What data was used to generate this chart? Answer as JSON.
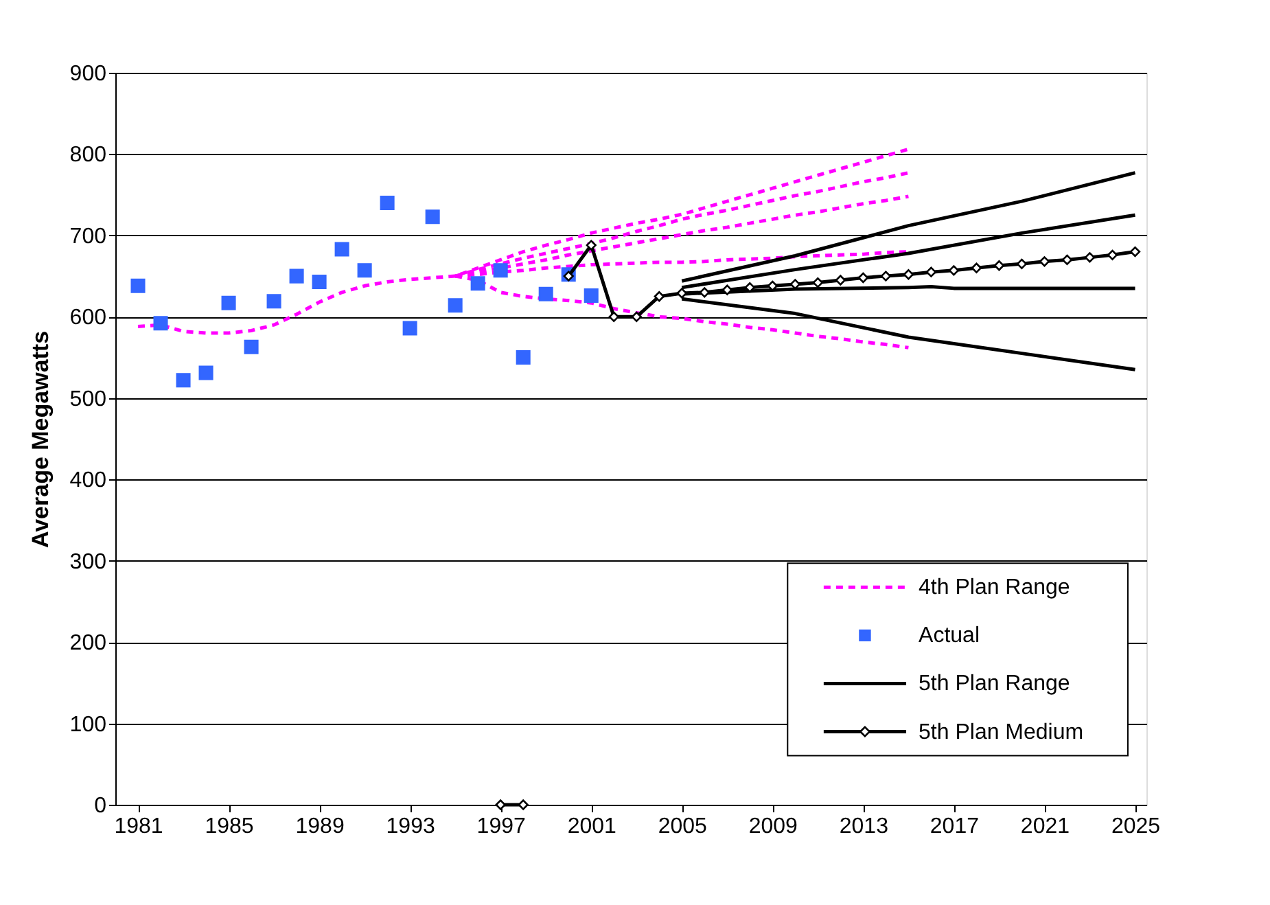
{
  "chart_data": {
    "type": "line",
    "ylabel": "Average Megawatts",
    "xlim": [
      1980,
      2025.5
    ],
    "xticks": [
      1981,
      1985,
      1989,
      1993,
      1997,
      2001,
      2005,
      2009,
      2013,
      2017,
      2021,
      2025
    ],
    "ylim": [
      0,
      900
    ],
    "yticks": [
      0,
      100,
      200,
      300,
      400,
      500,
      600,
      700,
      800,
      900
    ],
    "grid": "y",
    "legend": "bottom right",
    "series": [
      {
        "name": "4th Plan Range",
        "color": "#ff00ff",
        "line_style": "dashed",
        "marker": "none",
        "x": [
          1981,
          1982,
          1983,
          1984,
          1985,
          1986,
          1987,
          1988,
          1989,
          1990,
          1991,
          1992,
          1993,
          1994,
          1995,
          1996,
          1997,
          1998,
          1999,
          2000,
          2001,
          2002,
          2003,
          2004,
          2005,
          2006,
          2007,
          2008,
          2009,
          2010,
          2011,
          2012,
          2013,
          2014,
          2015
        ],
        "values": [
          588,
          590,
          582,
          580,
          580,
          583,
          590,
          603,
          618,
          630,
          638,
          643,
          646,
          648,
          650,
          660,
          670,
          680,
          688,
          695,
          703,
          709,
          715,
          720,
          726,
          734,
          742,
          750,
          758,
          766,
          774,
          782,
          790,
          798,
          806
        ]
      },
      {
        "color": "#ff00ff",
        "line_style": "dashed",
        "marker": "none",
        "x": [
          1995,
          1996,
          1997,
          1998,
          1999,
          2000,
          2001,
          2002,
          2003,
          2004,
          2005,
          2006,
          2007,
          2008,
          2009,
          2010,
          2011,
          2012,
          2013,
          2014,
          2015
        ],
        "values": [
          650,
          658,
          665,
          672,
          678,
          684,
          690,
          697,
          705,
          712,
          720,
          726,
          731,
          737,
          743,
          749,
          754,
          760,
          766,
          771,
          777
        ]
      },
      {
        "color": "#ff00ff",
        "line_style": "dashed",
        "marker": "none",
        "x": [
          1995,
          1996,
          1997,
          1998,
          1999,
          2000,
          2001,
          2002,
          2003,
          2004,
          2005,
          2006,
          2007,
          2008,
          2009,
          2010,
          2011,
          2012,
          2013,
          2014,
          2015
        ],
        "values": [
          650,
          655,
          660,
          665,
          670,
          676,
          681,
          686,
          691,
          696,
          701,
          706,
          710,
          715,
          720,
          725,
          729,
          734,
          739,
          743,
          748
        ]
      },
      {
        "color": "#ff00ff",
        "line_style": "dashed",
        "marker": "none",
        "x": [
          1995,
          1996,
          1997,
          1998,
          1999,
          2000,
          2001,
          2002,
          2003,
          2004,
          2005,
          2006,
          2007,
          2008,
          2009,
          2010,
          2011,
          2012,
          2013,
          2014,
          2015
        ],
        "values": [
          650,
          652,
          655,
          657,
          660,
          662,
          664,
          665,
          666,
          667,
          667,
          668,
          670,
          671,
          672,
          674,
          675,
          676,
          677,
          679,
          680
        ]
      },
      {
        "color": "#ff00ff",
        "line_style": "dashed",
        "marker": "none",
        "x": [
          1995,
          1996,
          1997,
          1998,
          1999,
          2000,
          2001,
          2002,
          2003,
          2004,
          2005,
          2006,
          2007,
          2008,
          2009,
          2010,
          2011,
          2012,
          2013,
          2014,
          2015
        ],
        "values": [
          650,
          645,
          630,
          625,
          622,
          620,
          617,
          610,
          605,
          600,
          598,
          594,
          591,
          587,
          584,
          580,
          576,
          573,
          569,
          566,
          562
        ]
      },
      {
        "name": "Actual",
        "type": "scatter",
        "color": "#3366ff",
        "marker": "square",
        "x": [
          1981,
          1982,
          1983,
          1984,
          1985,
          1986,
          1987,
          1988,
          1989,
          1990,
          1991,
          1992,
          1993,
          1994,
          1995,
          1996,
          1997,
          1998,
          1999,
          2000,
          2001
        ],
        "values": [
          638,
          592,
          522,
          531,
          617,
          563,
          619,
          650,
          643,
          683,
          657,
          740,
          586,
          723,
          614,
          641,
          657,
          550,
          628,
          652,
          626
        ]
      },
      {
        "name": "5th Plan Range",
        "color": "#000000",
        "line_style": "solid",
        "marker": "none",
        "x": [
          2005,
          2010,
          2015,
          2020,
          2025
        ],
        "values": [
          644,
          675,
          712,
          742,
          777
        ]
      },
      {
        "color": "#000000",
        "line_style": "solid",
        "marker": "none",
        "x": [
          2005,
          2010,
          2015,
          2020,
          2025
        ],
        "values": [
          636,
          658,
          678,
          703,
          725
        ]
      },
      {
        "color": "#000000",
        "line_style": "solid",
        "marker": "none",
        "x": [
          2005,
          2010,
          2015,
          2016,
          2017,
          2025
        ],
        "values": [
          628,
          634,
          636,
          637,
          635,
          635
        ]
      },
      {
        "color": "#000000",
        "line_style": "solid",
        "marker": "none",
        "x": [
          2005,
          2010,
          2015,
          2020,
          2025
        ],
        "values": [
          622,
          604,
          575,
          555,
          535
        ]
      },
      {
        "name": "5th Plan Medium",
        "color": "#000000",
        "line_style": "solid",
        "marker": "diamond",
        "x": [
          1997,
          1998,
          1999,
          2000,
          2001,
          2002,
          2003,
          2004,
          2005,
          2006,
          2007,
          2008,
          2009,
          2010,
          2011,
          2012,
          2013,
          2014,
          2015,
          2016,
          2017,
          2018,
          2019,
          2020,
          2021,
          2022,
          2023,
          2024,
          2025
        ],
        "values": [
          0,
          0,
          null,
          650,
          688,
          600,
          600,
          625,
          629,
          630,
          633,
          636,
          638,
          640,
          642,
          645,
          648,
          650,
          652,
          655,
          657,
          660,
          663,
          665,
          668,
          670,
          673,
          676,
          680
        ]
      }
    ]
  }
}
